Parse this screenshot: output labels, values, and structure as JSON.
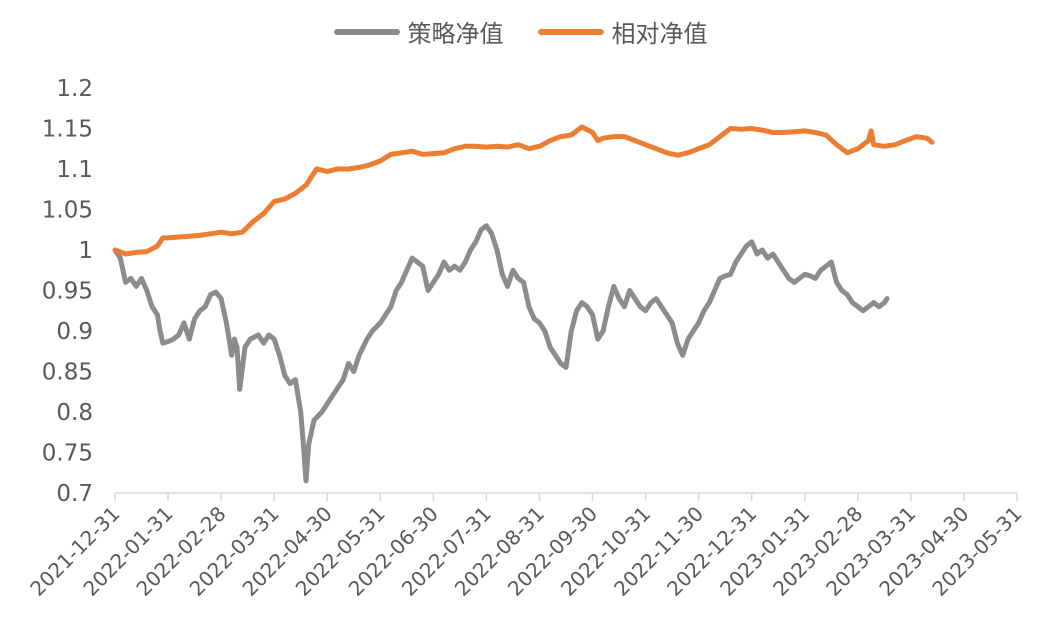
{
  "chart_data": {
    "type": "line",
    "title": "",
    "xlabel": "",
    "ylabel": "",
    "ylim": [
      0.7,
      1.2
    ],
    "yticks": [
      0.7,
      0.75,
      0.8,
      0.85,
      0.9,
      0.95,
      1,
      1.05,
      1.1,
      1.15,
      1.2
    ],
    "ytick_labels": [
      "0.7",
      "0.75",
      "0.8",
      "0.85",
      "0.9",
      "0.95",
      "1",
      "1.05",
      "1.1",
      "1.15",
      "1.2"
    ],
    "x_categories": [
      "2021-12-31",
      "2022-01-31",
      "2022-02-28",
      "2022-03-31",
      "2022-04-30",
      "2022-05-31",
      "2022-06-30",
      "2022-07-31",
      "2022-08-31",
      "2022-09-30",
      "2022-10-31",
      "2022-11-30",
      "2022-12-31",
      "2023-01-31",
      "2023-02-28",
      "2023-03-31",
      "2023-04-30",
      "2023-05-31"
    ],
    "legend_position": "top-center",
    "grid": false,
    "series": [
      {
        "name": "策略净值",
        "color": "#8c8c8c",
        "points": [
          [
            0,
            1.0
          ],
          [
            0.1,
            0.99
          ],
          [
            0.2,
            0.96
          ],
          [
            0.3,
            0.965
          ],
          [
            0.4,
            0.955
          ],
          [
            0.5,
            0.965
          ],
          [
            0.6,
            0.95
          ],
          [
            0.7,
            0.93
          ],
          [
            0.8,
            0.92
          ],
          [
            0.85,
            0.9
          ],
          [
            0.9,
            0.885
          ],
          [
            1.0,
            0.887
          ],
          [
            1.1,
            0.89
          ],
          [
            1.2,
            0.895
          ],
          [
            1.3,
            0.91
          ],
          [
            1.4,
            0.89
          ],
          [
            1.5,
            0.915
          ],
          [
            1.6,
            0.925
          ],
          [
            1.7,
            0.93
          ],
          [
            1.8,
            0.945
          ],
          [
            1.9,
            0.948
          ],
          [
            2.0,
            0.94
          ],
          [
            2.1,
            0.91
          ],
          [
            2.2,
            0.87
          ],
          [
            2.25,
            0.89
          ],
          [
            2.3,
            0.88
          ],
          [
            2.35,
            0.828
          ],
          [
            2.45,
            0.88
          ],
          [
            2.55,
            0.89
          ],
          [
            2.7,
            0.895
          ],
          [
            2.8,
            0.885
          ],
          [
            2.9,
            0.895
          ],
          [
            3.0,
            0.89
          ],
          [
            3.1,
            0.87
          ],
          [
            3.2,
            0.845
          ],
          [
            3.3,
            0.835
          ],
          [
            3.4,
            0.84
          ],
          [
            3.5,
            0.8
          ],
          [
            3.55,
            0.76
          ],
          [
            3.6,
            0.715
          ],
          [
            3.65,
            0.76
          ],
          [
            3.75,
            0.79
          ],
          [
            3.9,
            0.8
          ],
          [
            4.0,
            0.81
          ],
          [
            4.1,
            0.82
          ],
          [
            4.2,
            0.83
          ],
          [
            4.3,
            0.84
          ],
          [
            4.4,
            0.86
          ],
          [
            4.5,
            0.85
          ],
          [
            4.6,
            0.87
          ],
          [
            4.75,
            0.89
          ],
          [
            4.85,
            0.9
          ],
          [
            5.0,
            0.91
          ],
          [
            5.1,
            0.92
          ],
          [
            5.2,
            0.93
          ],
          [
            5.3,
            0.95
          ],
          [
            5.4,
            0.96
          ],
          [
            5.5,
            0.975
          ],
          [
            5.6,
            0.99
          ],
          [
            5.7,
            0.985
          ],
          [
            5.8,
            0.98
          ],
          [
            5.9,
            0.95
          ],
          [
            6.0,
            0.96
          ],
          [
            6.1,
            0.97
          ],
          [
            6.2,
            0.985
          ],
          [
            6.3,
            0.975
          ],
          [
            6.4,
            0.98
          ],
          [
            6.5,
            0.975
          ],
          [
            6.6,
            0.985
          ],
          [
            6.7,
            1.0
          ],
          [
            6.8,
            1.01
          ],
          [
            6.9,
            1.025
          ],
          [
            7.0,
            1.03
          ],
          [
            7.1,
            1.02
          ],
          [
            7.2,
            1.0
          ],
          [
            7.3,
            0.97
          ],
          [
            7.4,
            0.955
          ],
          [
            7.5,
            0.975
          ],
          [
            7.6,
            0.965
          ],
          [
            7.7,
            0.96
          ],
          [
            7.8,
            0.93
          ],
          [
            7.9,
            0.915
          ],
          [
            8.0,
            0.91
          ],
          [
            8.1,
            0.9
          ],
          [
            8.2,
            0.88
          ],
          [
            8.3,
            0.87
          ],
          [
            8.4,
            0.86
          ],
          [
            8.5,
            0.855
          ],
          [
            8.6,
            0.9
          ],
          [
            8.7,
            0.925
          ],
          [
            8.8,
            0.935
          ],
          [
            8.9,
            0.93
          ],
          [
            9.0,
            0.92
          ],
          [
            9.1,
            0.89
          ],
          [
            9.2,
            0.9
          ],
          [
            9.3,
            0.93
          ],
          [
            9.4,
            0.955
          ],
          [
            9.5,
            0.94
          ],
          [
            9.6,
            0.93
          ],
          [
            9.7,
            0.95
          ],
          [
            9.8,
            0.94
          ],
          [
            9.9,
            0.93
          ],
          [
            10.0,
            0.925
          ],
          [
            10.1,
            0.935
          ],
          [
            10.2,
            0.94
          ],
          [
            10.3,
            0.93
          ],
          [
            10.4,
            0.92
          ],
          [
            10.5,
            0.91
          ],
          [
            10.6,
            0.885
          ],
          [
            10.7,
            0.87
          ],
          [
            10.8,
            0.89
          ],
          [
            10.9,
            0.9
          ],
          [
            11.0,
            0.91
          ],
          [
            11.1,
            0.925
          ],
          [
            11.2,
            0.935
          ],
          [
            11.3,
            0.95
          ],
          [
            11.4,
            0.965
          ],
          [
            11.5,
            0.968
          ],
          [
            11.6,
            0.97
          ],
          [
            11.7,
            0.985
          ],
          [
            11.8,
            0.995
          ],
          [
            11.9,
            1.005
          ],
          [
            12.0,
            1.01
          ],
          [
            12.1,
            0.995
          ],
          [
            12.2,
            1.0
          ],
          [
            12.3,
            0.99
          ],
          [
            12.4,
            0.995
          ],
          [
            12.5,
            0.985
          ],
          [
            12.6,
            0.975
          ],
          [
            12.7,
            0.965
          ],
          [
            12.8,
            0.96
          ],
          [
            12.9,
            0.965
          ],
          [
            13.0,
            0.97
          ],
          [
            13.1,
            0.968
          ],
          [
            13.2,
            0.965
          ],
          [
            13.3,
            0.975
          ],
          [
            13.4,
            0.98
          ],
          [
            13.5,
            0.985
          ],
          [
            13.6,
            0.96
          ],
          [
            13.7,
            0.95
          ],
          [
            13.8,
            0.945
          ],
          [
            13.9,
            0.935
          ],
          [
            14.0,
            0.93
          ],
          [
            14.1,
            0.925
          ],
          [
            14.2,
            0.93
          ],
          [
            14.3,
            0.935
          ],
          [
            14.4,
            0.93
          ],
          [
            14.5,
            0.935
          ],
          [
            14.55,
            0.94
          ]
        ]
      },
      {
        "name": "相对净值",
        "color": "#ed7d31",
        "points": [
          [
            0,
            1.0
          ],
          [
            0.2,
            0.995
          ],
          [
            0.4,
            0.997
          ],
          [
            0.6,
            0.998
          ],
          [
            0.8,
            1.005
          ],
          [
            0.9,
            1.015
          ],
          [
            1.0,
            1.015
          ],
          [
            1.2,
            1.016
          ],
          [
            1.4,
            1.017
          ],
          [
            1.6,
            1.018
          ],
          [
            1.8,
            1.02
          ],
          [
            2.0,
            1.022
          ],
          [
            2.2,
            1.02
          ],
          [
            2.4,
            1.022
          ],
          [
            2.6,
            1.035
          ],
          [
            2.8,
            1.045
          ],
          [
            3.0,
            1.06
          ],
          [
            3.2,
            1.063
          ],
          [
            3.4,
            1.07
          ],
          [
            3.6,
            1.08
          ],
          [
            3.8,
            1.1
          ],
          [
            4.0,
            1.097
          ],
          [
            4.2,
            1.1
          ],
          [
            4.4,
            1.1
          ],
          [
            4.6,
            1.102
          ],
          [
            4.8,
            1.105
          ],
          [
            5.0,
            1.11
          ],
          [
            5.2,
            1.118
          ],
          [
            5.4,
            1.12
          ],
          [
            5.6,
            1.122
          ],
          [
            5.8,
            1.118
          ],
          [
            6.0,
            1.119
          ],
          [
            6.2,
            1.12
          ],
          [
            6.4,
            1.125
          ],
          [
            6.6,
            1.128
          ],
          [
            6.8,
            1.128
          ],
          [
            7.0,
            1.127
          ],
          [
            7.2,
            1.128
          ],
          [
            7.4,
            1.127
          ],
          [
            7.6,
            1.13
          ],
          [
            7.8,
            1.125
          ],
          [
            8.0,
            1.128
          ],
          [
            8.2,
            1.135
          ],
          [
            8.4,
            1.14
          ],
          [
            8.6,
            1.142
          ],
          [
            8.8,
            1.152
          ],
          [
            9.0,
            1.145
          ],
          [
            9.1,
            1.135
          ],
          [
            9.2,
            1.138
          ],
          [
            9.4,
            1.14
          ],
          [
            9.6,
            1.14
          ],
          [
            9.8,
            1.135
          ],
          [
            10.0,
            1.13
          ],
          [
            10.2,
            1.125
          ],
          [
            10.4,
            1.12
          ],
          [
            10.6,
            1.117
          ],
          [
            10.8,
            1.12
          ],
          [
            11.0,
            1.125
          ],
          [
            11.2,
            1.13
          ],
          [
            11.4,
            1.14
          ],
          [
            11.6,
            1.15
          ],
          [
            11.8,
            1.149
          ],
          [
            12.0,
            1.15
          ],
          [
            12.2,
            1.148
          ],
          [
            12.4,
            1.145
          ],
          [
            12.6,
            1.145
          ],
          [
            12.8,
            1.146
          ],
          [
            13.0,
            1.147
          ],
          [
            13.2,
            1.145
          ],
          [
            13.4,
            1.142
          ],
          [
            13.6,
            1.13
          ],
          [
            13.8,
            1.12
          ],
          [
            14.0,
            1.125
          ],
          [
            14.1,
            1.13
          ],
          [
            14.2,
            1.135
          ],
          [
            14.25,
            1.147
          ],
          [
            14.3,
            1.13
          ],
          [
            14.5,
            1.128
          ],
          [
            14.7,
            1.13
          ],
          [
            14.9,
            1.135
          ],
          [
            15.1,
            1.14
          ],
          [
            15.3,
            1.138
          ],
          [
            15.4,
            1.133
          ]
        ]
      }
    ]
  }
}
